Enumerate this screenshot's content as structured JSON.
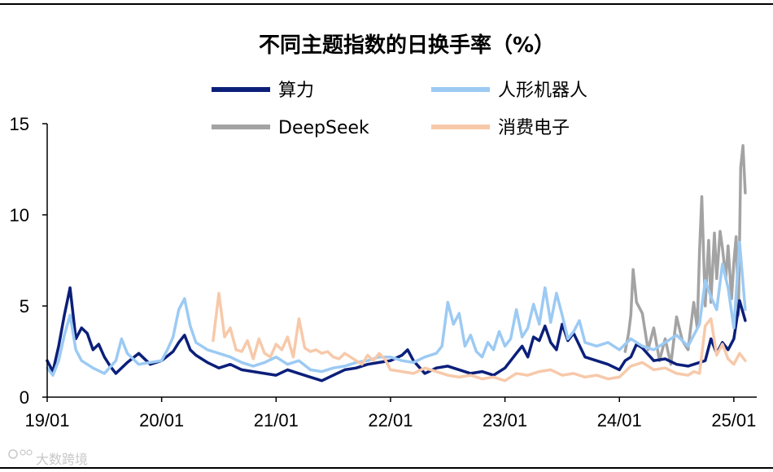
{
  "chart_data": {
    "type": "line",
    "title": "不同主题指数的日换手率（%）",
    "xlabel": "",
    "ylabel": "",
    "ylim": [
      0,
      15
    ],
    "xlim": [
      2019.0,
      2025.2
    ],
    "y_ticks": [
      "0",
      "5",
      "10",
      "15"
    ],
    "y_tick_values": [
      0,
      5,
      10,
      15
    ],
    "x_ticks": [
      "19/01",
      "20/01",
      "21/01",
      "22/01",
      "23/01",
      "24/01",
      "25/01"
    ],
    "x_tick_values": [
      2019.0,
      2020.0,
      2021.0,
      2022.0,
      2023.0,
      2024.0,
      2025.0
    ],
    "legend": [
      "算力",
      "人形机器人",
      "DeepSeek",
      "消费电子"
    ],
    "series": [
      {
        "name": "算力",
        "color": "#0b1f7a",
        "x": [
          2019.0,
          2019.05,
          2019.1,
          2019.15,
          2019.2,
          2019.25,
          2019.3,
          2019.35,
          2019.4,
          2019.45,
          2019.5,
          2019.55,
          2019.6,
          2019.7,
          2019.8,
          2019.9,
          2020.0,
          2020.1,
          2020.15,
          2020.2,
          2020.25,
          2020.3,
          2020.4,
          2020.5,
          2020.6,
          2020.7,
          2020.8,
          2020.9,
          2021.0,
          2021.1,
          2021.2,
          2021.3,
          2021.4,
          2021.5,
          2021.6,
          2021.7,
          2021.8,
          2021.9,
          2022.0,
          2022.1,
          2022.15,
          2022.2,
          2022.3,
          2022.4,
          2022.5,
          2022.6,
          2022.7,
          2022.8,
          2022.9,
          2023.0,
          2023.05,
          2023.1,
          2023.15,
          2023.2,
          2023.25,
          2023.3,
          2023.35,
          2023.4,
          2023.45,
          2023.5,
          2023.55,
          2023.6,
          2023.7,
          2023.8,
          2023.9,
          2024.0,
          2024.05,
          2024.1,
          2024.15,
          2024.2,
          2024.3,
          2024.4,
          2024.5,
          2024.6,
          2024.7,
          2024.75,
          2024.8,
          2024.85,
          2024.9,
          2024.95,
          2025.0,
          2025.05,
          2025.1
        ],
        "values": [
          2.0,
          1.4,
          2.8,
          4.5,
          6.0,
          3.2,
          3.8,
          3.5,
          2.6,
          2.9,
          2.2,
          1.7,
          1.3,
          1.9,
          2.4,
          1.8,
          2.0,
          2.5,
          3.0,
          3.4,
          2.6,
          2.3,
          1.9,
          1.6,
          1.8,
          1.5,
          1.4,
          1.3,
          1.2,
          1.5,
          1.3,
          1.1,
          0.9,
          1.2,
          1.5,
          1.6,
          1.8,
          1.9,
          2.0,
          2.3,
          2.6,
          2.0,
          1.3,
          1.6,
          1.7,
          1.5,
          1.3,
          1.4,
          1.2,
          1.6,
          2.0,
          2.4,
          2.8,
          2.2,
          3.3,
          3.1,
          3.9,
          3.0,
          2.6,
          4.0,
          3.1,
          3.5,
          2.2,
          2.0,
          1.8,
          1.5,
          2.0,
          2.2,
          2.9,
          2.7,
          2.0,
          2.1,
          1.8,
          1.7,
          1.9,
          2.0,
          3.2,
          2.4,
          3.0,
          2.6,
          3.2,
          5.3,
          4.2
        ]
      },
      {
        "name": "人形机器人",
        "color": "#9ccaf3",
        "x": [
          2019.0,
          2019.05,
          2019.1,
          2019.15,
          2019.2,
          2019.25,
          2019.3,
          2019.4,
          2019.5,
          2019.6,
          2019.65,
          2019.7,
          2019.8,
          2019.9,
          2020.0,
          2020.05,
          2020.1,
          2020.15,
          2020.2,
          2020.25,
          2020.3,
          2020.4,
          2020.5,
          2020.6,
          2020.7,
          2020.8,
          2020.9,
          2021.0,
          2021.1,
          2021.2,
          2021.3,
          2021.4,
          2021.5,
          2021.6,
          2021.7,
          2021.8,
          2021.9,
          2022.0,
          2022.1,
          2022.2,
          2022.3,
          2022.4,
          2022.45,
          2022.5,
          2022.55,
          2022.6,
          2022.65,
          2022.7,
          2022.75,
          2022.8,
          2022.85,
          2022.9,
          2022.95,
          2023.0,
          2023.05,
          2023.1,
          2023.15,
          2023.2,
          2023.25,
          2023.3,
          2023.35,
          2023.4,
          2023.45,
          2023.5,
          2023.55,
          2023.6,
          2023.65,
          2023.7,
          2023.8,
          2023.9,
          2024.0,
          2024.05,
          2024.1,
          2024.2,
          2024.3,
          2024.4,
          2024.5,
          2024.6,
          2024.7,
          2024.75,
          2024.8,
          2024.85,
          2024.9,
          2024.95,
          2025.0,
          2025.05,
          2025.1
        ],
        "values": [
          1.6,
          1.2,
          2.0,
          3.4,
          4.5,
          2.6,
          2.0,
          1.6,
          1.3,
          2.0,
          3.2,
          2.4,
          1.8,
          1.9,
          2.0,
          2.6,
          3.3,
          4.8,
          5.4,
          3.9,
          3.0,
          2.6,
          2.4,
          2.2,
          1.9,
          1.7,
          1.9,
          2.2,
          1.8,
          2.0,
          1.5,
          1.4,
          1.6,
          1.7,
          1.9,
          2.0,
          2.2,
          2.2,
          2.0,
          1.9,
          2.2,
          2.4,
          2.8,
          5.2,
          4.0,
          4.6,
          2.8,
          3.4,
          2.5,
          2.2,
          3.0,
          2.6,
          3.6,
          2.8,
          3.2,
          4.8,
          3.3,
          3.8,
          5.1,
          4.0,
          6.0,
          4.1,
          5.7,
          4.5,
          3.2,
          3.6,
          4.2,
          3.0,
          2.8,
          3.0,
          2.6,
          2.9,
          3.2,
          2.8,
          2.6,
          3.0,
          3.4,
          2.8,
          4.0,
          6.4,
          5.5,
          4.8,
          7.3,
          6.0,
          3.8,
          8.5,
          4.8
        ]
      },
      {
        "name": "DeepSeek",
        "color": "#a3a3a3",
        "x": [
          2024.05,
          2024.08,
          2024.1,
          2024.12,
          2024.15,
          2024.2,
          2024.25,
          2024.3,
          2024.35,
          2024.4,
          2024.45,
          2024.5,
          2024.55,
          2024.6,
          2024.65,
          2024.68,
          2024.7,
          2024.72,
          2024.75,
          2024.78,
          2024.8,
          2024.83,
          2024.85,
          2024.88,
          2024.9,
          2024.93,
          2024.95,
          2024.98,
          2025.0,
          2025.02,
          2025.04,
          2025.06,
          2025.08,
          2025.1
        ],
        "values": [
          2.5,
          3.5,
          4.5,
          7.0,
          5.2,
          4.6,
          2.6,
          3.8,
          2.0,
          3.2,
          1.8,
          4.4,
          3.1,
          2.6,
          5.2,
          3.8,
          8.0,
          11.0,
          5.0,
          8.6,
          5.2,
          9.0,
          6.5,
          9.1,
          8.2,
          6.5,
          8.3,
          5.4,
          7.4,
          8.8,
          4.5,
          12.6,
          13.8,
          11.2
        ]
      },
      {
        "name": "消费电子",
        "color": "#f7c9aa",
        "x": [
          2020.45,
          2020.5,
          2020.55,
          2020.6,
          2020.65,
          2020.7,
          2020.75,
          2020.8,
          2020.85,
          2020.9,
          2020.95,
          2021.0,
          2021.05,
          2021.1,
          2021.15,
          2021.2,
          2021.25,
          2021.3,
          2021.35,
          2021.4,
          2021.45,
          2021.5,
          2021.55,
          2021.6,
          2021.65,
          2021.7,
          2021.75,
          2021.8,
          2021.85,
          2021.9,
          2021.95,
          2022.0,
          2022.1,
          2022.2,
          2022.3,
          2022.4,
          2022.5,
          2022.6,
          2022.7,
          2022.8,
          2022.9,
          2023.0,
          2023.1,
          2023.2,
          2023.3,
          2023.4,
          2023.5,
          2023.6,
          2023.7,
          2023.8,
          2023.9,
          2024.0,
          2024.1,
          2024.2,
          2024.3,
          2024.4,
          2024.5,
          2024.6,
          2024.65,
          2024.7,
          2024.75,
          2024.8,
          2024.85,
          2024.9,
          2024.95,
          2025.0,
          2025.05,
          2025.1
        ],
        "values": [
          3.1,
          5.7,
          3.3,
          3.8,
          2.6,
          2.5,
          3.1,
          2.1,
          3.2,
          2.4,
          2.2,
          2.9,
          2.6,
          3.3,
          2.2,
          4.3,
          2.7,
          2.5,
          2.6,
          2.4,
          2.5,
          2.2,
          2.1,
          2.4,
          2.2,
          2.0,
          1.8,
          2.3,
          2.0,
          2.4,
          2.1,
          1.5,
          1.4,
          1.3,
          1.6,
          1.4,
          1.2,
          1.1,
          1.2,
          1.0,
          1.1,
          0.9,
          1.3,
          1.2,
          1.4,
          1.5,
          1.2,
          1.3,
          1.1,
          1.2,
          1.0,
          1.1,
          1.7,
          1.9,
          1.5,
          1.6,
          1.3,
          1.2,
          1.4,
          1.3,
          3.9,
          4.3,
          2.3,
          2.9,
          2.1,
          1.8,
          2.4,
          2.0
        ]
      }
    ]
  },
  "watermark": "大数跨境",
  "watermark_icon": "camera-logo-icon"
}
